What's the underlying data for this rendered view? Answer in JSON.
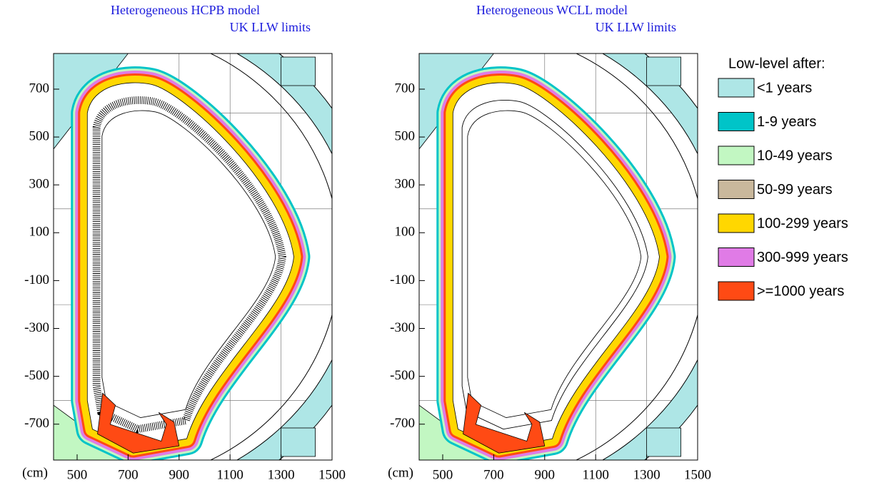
{
  "panels": [
    {
      "title": [
        "Heterogeneous HCPB model",
        "UK LLW limits"
      ],
      "unit": "(cm)",
      "xticks": [
        "500",
        "700",
        "900",
        "1100",
        "1300",
        "1500"
      ],
      "yticks": [
        "700",
        "500",
        "300",
        "100",
        "-100",
        "-300",
        "-500",
        "-700"
      ]
    },
    {
      "title": [
        "Heterogeneous WCLL model",
        "UK LLW limits"
      ],
      "unit": "(cm)",
      "xticks": [
        "500",
        "700",
        "900",
        "1100",
        "1300",
        "1500"
      ],
      "yticks": [
        "700",
        "500",
        "300",
        "100",
        "-100",
        "-300",
        "-500",
        "-700"
      ]
    }
  ],
  "legend": {
    "title": "Low-level after:",
    "items": [
      {
        "label": "<1 years",
        "color": "#aee6e6"
      },
      {
        "label": "1-9 years",
        "color": "#00c4c8"
      },
      {
        "label": "10-49 years",
        "color": "#c2f7c2"
      },
      {
        "label": "50-99 years",
        "color": "#c9b89c"
      },
      {
        "label": "100-299 years",
        "color": "#ffd700"
      },
      {
        "label": "300-999 years",
        "color": "#e07be6"
      },
      {
        "label": ">=1000 years",
        "color": "#ff4a14"
      }
    ]
  }
}
